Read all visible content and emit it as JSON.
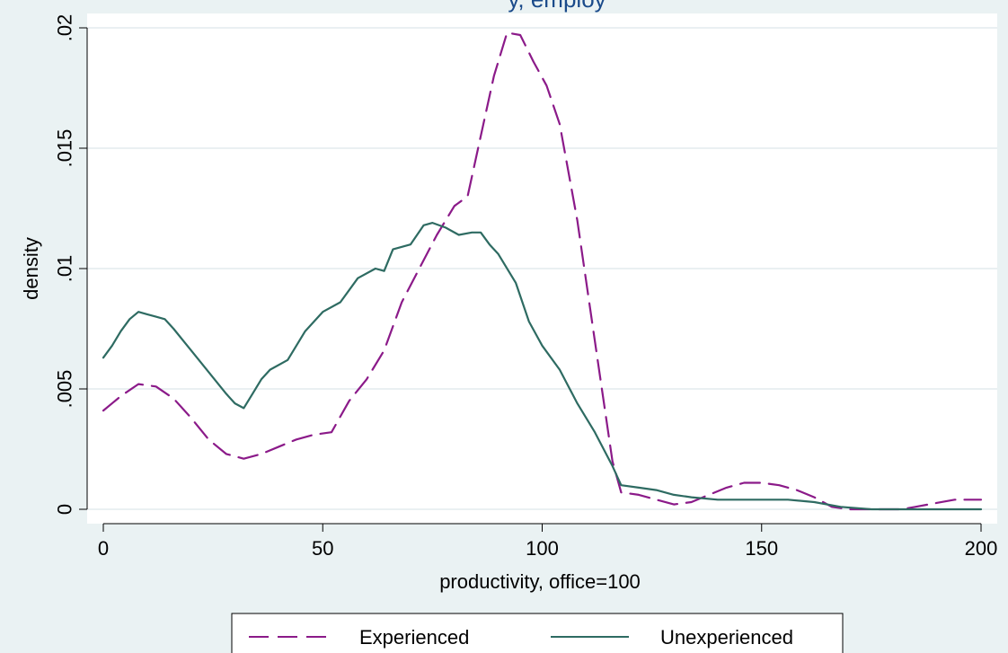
{
  "chart_data": {
    "type": "line",
    "title": "y, employ",
    "xlabel": "productivity, office=100",
    "ylabel": "density",
    "xlim": [
      0,
      200
    ],
    "ylim": [
      0,
      0.02
    ],
    "xticks": [
      {
        "value": 0,
        "label": "0"
      },
      {
        "value": 50,
        "label": "50"
      },
      {
        "value": 100,
        "label": "100"
      },
      {
        "value": 150,
        "label": "150"
      },
      {
        "value": 200,
        "label": "200"
      }
    ],
    "yticks": [
      {
        "value": 0,
        "label": "0"
      },
      {
        "value": 0.005,
        "label": ".005"
      },
      {
        "value": 0.01,
        "label": ".01"
      },
      {
        "value": 0.015,
        "label": ".015"
      },
      {
        "value": 0.02,
        "label": ".02"
      }
    ],
    "grid": true,
    "legend_position": "bottom",
    "series": [
      {
        "name": "Experienced",
        "color": "#8b1a89",
        "style": "dashed",
        "points": [
          [
            0,
            0.0041
          ],
          [
            4,
            0.0047
          ],
          [
            8,
            0.0052
          ],
          [
            12,
            0.0051
          ],
          [
            16,
            0.0046
          ],
          [
            20,
            0.0038
          ],
          [
            24,
            0.0029
          ],
          [
            28,
            0.0023
          ],
          [
            32,
            0.0021
          ],
          [
            36,
            0.0023
          ],
          [
            40,
            0.0026
          ],
          [
            44,
            0.0029
          ],
          [
            48,
            0.0031
          ],
          [
            52,
            0.0032
          ],
          [
            56,
            0.0045
          ],
          [
            60,
            0.0054
          ],
          [
            64,
            0.0066
          ],
          [
            68,
            0.0086
          ],
          [
            72,
            0.01
          ],
          [
            76,
            0.0114
          ],
          [
            80,
            0.0126
          ],
          [
            83,
            0.013
          ],
          [
            86,
            0.0155
          ],
          [
            89,
            0.018
          ],
          [
            92,
            0.0198
          ],
          [
            95,
            0.0197
          ],
          [
            98,
            0.0186
          ],
          [
            101,
            0.0176
          ],
          [
            104,
            0.016
          ],
          [
            108,
            0.012
          ],
          [
            112,
            0.007
          ],
          [
            116,
            0.002
          ],
          [
            118,
            0.0007
          ],
          [
            122,
            0.0006
          ],
          [
            126,
            0.0004
          ],
          [
            130,
            0.0002
          ],
          [
            134,
            0.0003
          ],
          [
            138,
            0.0006
          ],
          [
            142,
            0.0009
          ],
          [
            146,
            0.0011
          ],
          [
            150,
            0.0011
          ],
          [
            154,
            0.001
          ],
          [
            158,
            0.0008
          ],
          [
            162,
            0.0005
          ],
          [
            166,
            0.0001
          ],
          [
            170,
            0.0
          ],
          [
            175,
            0.0
          ],
          [
            182,
            0.0
          ],
          [
            188,
            0.0002
          ],
          [
            194,
            0.0004
          ],
          [
            200,
            0.0004
          ]
        ]
      },
      {
        "name": "Unexperienced",
        "color": "#2e6b62",
        "style": "solid",
        "points": [
          [
            0,
            0.0063
          ],
          [
            2,
            0.0068
          ],
          [
            4,
            0.0074
          ],
          [
            6,
            0.0079
          ],
          [
            8,
            0.0082
          ],
          [
            10,
            0.0081
          ],
          [
            12,
            0.008
          ],
          [
            14,
            0.0079
          ],
          [
            16,
            0.0075
          ],
          [
            20,
            0.0066
          ],
          [
            24,
            0.0057
          ],
          [
            28,
            0.0048
          ],
          [
            30,
            0.0044
          ],
          [
            32,
            0.0042
          ],
          [
            34,
            0.0048
          ],
          [
            36,
            0.0054
          ],
          [
            38,
            0.0058
          ],
          [
            42,
            0.0062
          ],
          [
            46,
            0.0074
          ],
          [
            50,
            0.0082
          ],
          [
            54,
            0.0086
          ],
          [
            58,
            0.0096
          ],
          [
            62,
            0.01
          ],
          [
            64,
            0.0099
          ],
          [
            66,
            0.0108
          ],
          [
            70,
            0.011
          ],
          [
            73,
            0.0118
          ],
          [
            75,
            0.0119
          ],
          [
            78,
            0.0117
          ],
          [
            81,
            0.0114
          ],
          [
            84,
            0.0115
          ],
          [
            86,
            0.0115
          ],
          [
            88,
            0.011
          ],
          [
            90,
            0.0106
          ],
          [
            94,
            0.0094
          ],
          [
            97,
            0.0078
          ],
          [
            100,
            0.0068
          ],
          [
            104,
            0.0058
          ],
          [
            108,
            0.0044
          ],
          [
            112,
            0.0032
          ],
          [
            116,
            0.0018
          ],
          [
            118,
            0.001
          ],
          [
            122,
            0.0009
          ],
          [
            126,
            0.0008
          ],
          [
            130,
            0.0006
          ],
          [
            134,
            0.0005
          ],
          [
            140,
            0.0004
          ],
          [
            146,
            0.0004
          ],
          [
            150,
            0.0004
          ],
          [
            156,
            0.0004
          ],
          [
            162,
            0.0003
          ],
          [
            168,
            0.0001
          ],
          [
            175,
            0.0
          ],
          [
            185,
            0.0
          ],
          [
            200,
            0.0
          ]
        ]
      }
    ]
  }
}
